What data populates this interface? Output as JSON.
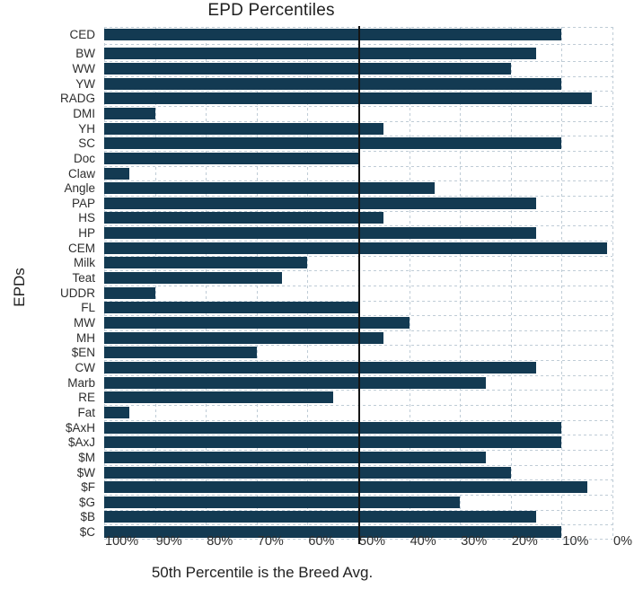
{
  "chart_data": {
    "type": "bar",
    "orientation": "horizontal",
    "title": "EPD Percentiles",
    "xlabel": "50th Percentile is the Breed Avg.",
    "ylabel": "EPDs",
    "categories": [
      "CED",
      "BW",
      "WW",
      "YW",
      "RADG",
      "DMI",
      "YH",
      "SC",
      "Doc",
      "Claw",
      "Angle",
      "PAP",
      "HS",
      "HP",
      "CEM",
      "Milk",
      "Teat",
      "UDDR",
      "FL",
      "MW",
      "MH",
      "$EN",
      "CW",
      "Marb",
      "RE",
      "Fat",
      "$AxH",
      "$AxJ",
      "$M",
      "$W",
      "$F",
      "$G",
      "$B",
      "$C"
    ],
    "values": [
      10,
      15,
      20,
      10,
      4,
      90,
      45,
      10,
      50,
      95,
      35,
      15,
      45,
      15,
      1,
      60,
      65,
      90,
      50,
      40,
      45,
      70,
      15,
      25,
      55,
      95,
      10,
      10,
      25,
      20,
      5,
      30,
      15,
      10
    ],
    "value_meaning": "breed percentile; bars drawn from 100% toward 0%",
    "xlim": [
      100,
      0
    ],
    "xticks_percent": [
      100,
      90,
      80,
      70,
      60,
      50,
      40,
      30,
      20,
      10,
      0
    ],
    "xtick_labels": [
      "100%",
      "90%",
      "80%",
      "70%",
      "60%",
      "50%",
      "40%",
      "30%",
      "20%",
      "10%",
      "0%"
    ],
    "reference_line_at_percent": 50,
    "grid": "dashed",
    "legend": "none",
    "extra_gap_after_first_category": true,
    "colors": {
      "bar": "#133a52",
      "grid": "#bfccd6",
      "reference_line": "#151515",
      "text": "#2e2e2e",
      "background": "#ffffff"
    }
  }
}
